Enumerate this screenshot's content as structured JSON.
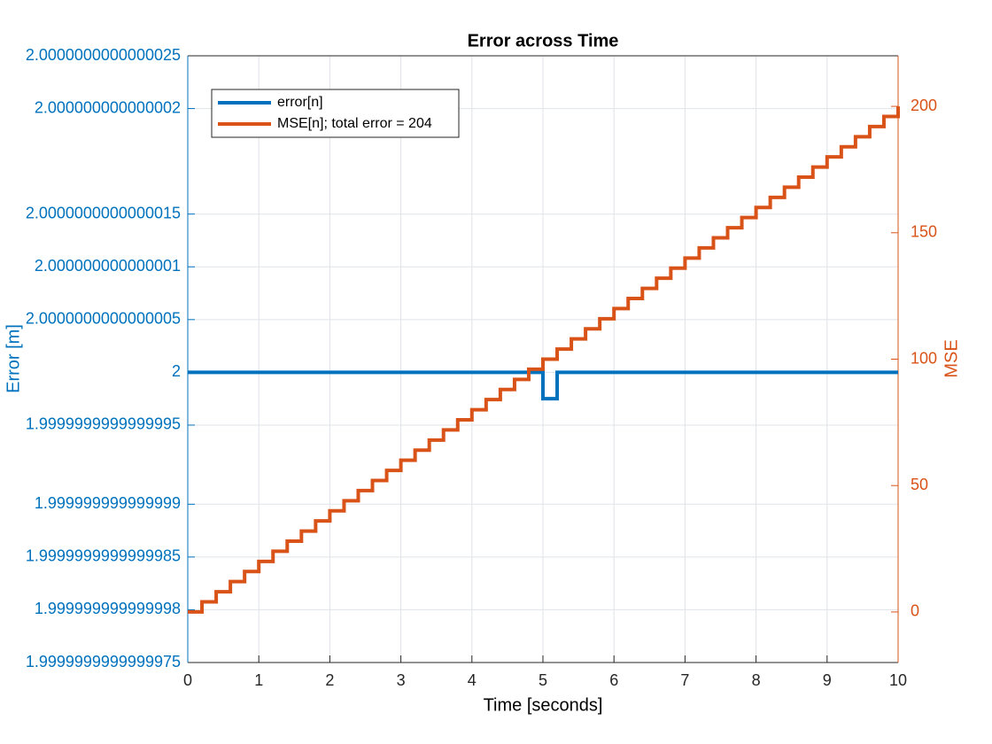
{
  "chart_data": {
    "type": "line",
    "drawstyle": "steps-post",
    "title": "Error across Time",
    "xlabel": "Time [seconds]",
    "ylabel": "Error [m]",
    "y2label": "MSE",
    "x": [
      0,
      0.2,
      0.4,
      0.6,
      0.8,
      1,
      1.2,
      1.4,
      1.6,
      1.8,
      2,
      2.2,
      2.4,
      2.6,
      2.8,
      3,
      3.2,
      3.4,
      3.6,
      3.8,
      4,
      4.2,
      4.4,
      4.6,
      4.8,
      5,
      5.2,
      5.4,
      5.6,
      5.8,
      6,
      6.2,
      6.4,
      6.6,
      6.8,
      7,
      7.2,
      7.4,
      7.6,
      7.8,
      8,
      8.2,
      8.4,
      8.6,
      8.8,
      9,
      9.2,
      9.4,
      9.6,
      9.8,
      10
    ],
    "xlim": [
      0,
      10
    ],
    "xticks": [
      0,
      1,
      2,
      3,
      4,
      5,
      6,
      7,
      8,
      9,
      10
    ],
    "ylim": [
      1.9999999999999976,
      2.0000000000000027
    ],
    "yticks": [
      {
        "value": 1.9999999999999976,
        "label": "1.9999999999999975"
      },
      {
        "value": 1.999999999999998,
        "label": "1.999999999999998"
      },
      {
        "value": 1.9999999999999984,
        "label": "1.9999999999999985"
      },
      {
        "value": 1.999999999999999,
        "label": "1.999999999999999"
      },
      {
        "value": 1.9999999999999996,
        "label": "1.9999999999999995"
      },
      2,
      {
        "value": 2.0000000000000004,
        "label": "2.0000000000000005"
      },
      {
        "value": 2.000000000000001,
        "label": "2.000000000000001"
      },
      {
        "value": 2.0000000000000013,
        "label": "2.0000000000000015"
      },
      {
        "value": 2.000000000000002,
        "label": "2.000000000000002"
      },
      {
        "value": 2.0000000000000027,
        "label": "2.0000000000000025"
      }
    ],
    "y2lim": [
      -20,
      220
    ],
    "y2ticks": [
      0,
      50,
      100,
      150,
      200
    ],
    "grid": true,
    "legend": "upper-left",
    "series": [
      {
        "name": "error[n]",
        "color": "#0072bd",
        "axis": "y",
        "values": [
          2,
          2,
          2,
          2,
          2,
          2,
          2,
          2,
          2,
          2,
          2,
          2,
          2,
          2,
          2,
          2,
          2,
          2,
          2,
          2,
          2,
          2,
          2,
          2,
          2,
          1.9999999999999998,
          2,
          2,
          2,
          2,
          2,
          2,
          2,
          2,
          2,
          2,
          2,
          2,
          2,
          2,
          2,
          2,
          2,
          2,
          2,
          2,
          2,
          2,
          2,
          2,
          2
        ]
      },
      {
        "name": "MSE[n]; total error = 204",
        "color": "#d95319",
        "axis": "y2",
        "values": [
          0,
          4,
          8,
          12,
          16,
          20,
          24,
          28,
          32,
          36,
          40,
          44,
          48,
          52,
          56,
          60,
          64,
          68,
          72,
          76,
          80,
          84,
          88,
          92,
          96,
          100,
          104,
          108,
          112,
          116,
          120,
          124,
          128,
          132,
          136,
          140,
          144,
          148,
          152,
          156,
          160,
          164,
          168,
          172,
          176,
          180,
          184,
          188,
          192,
          196,
          200
        ]
      }
    ]
  }
}
